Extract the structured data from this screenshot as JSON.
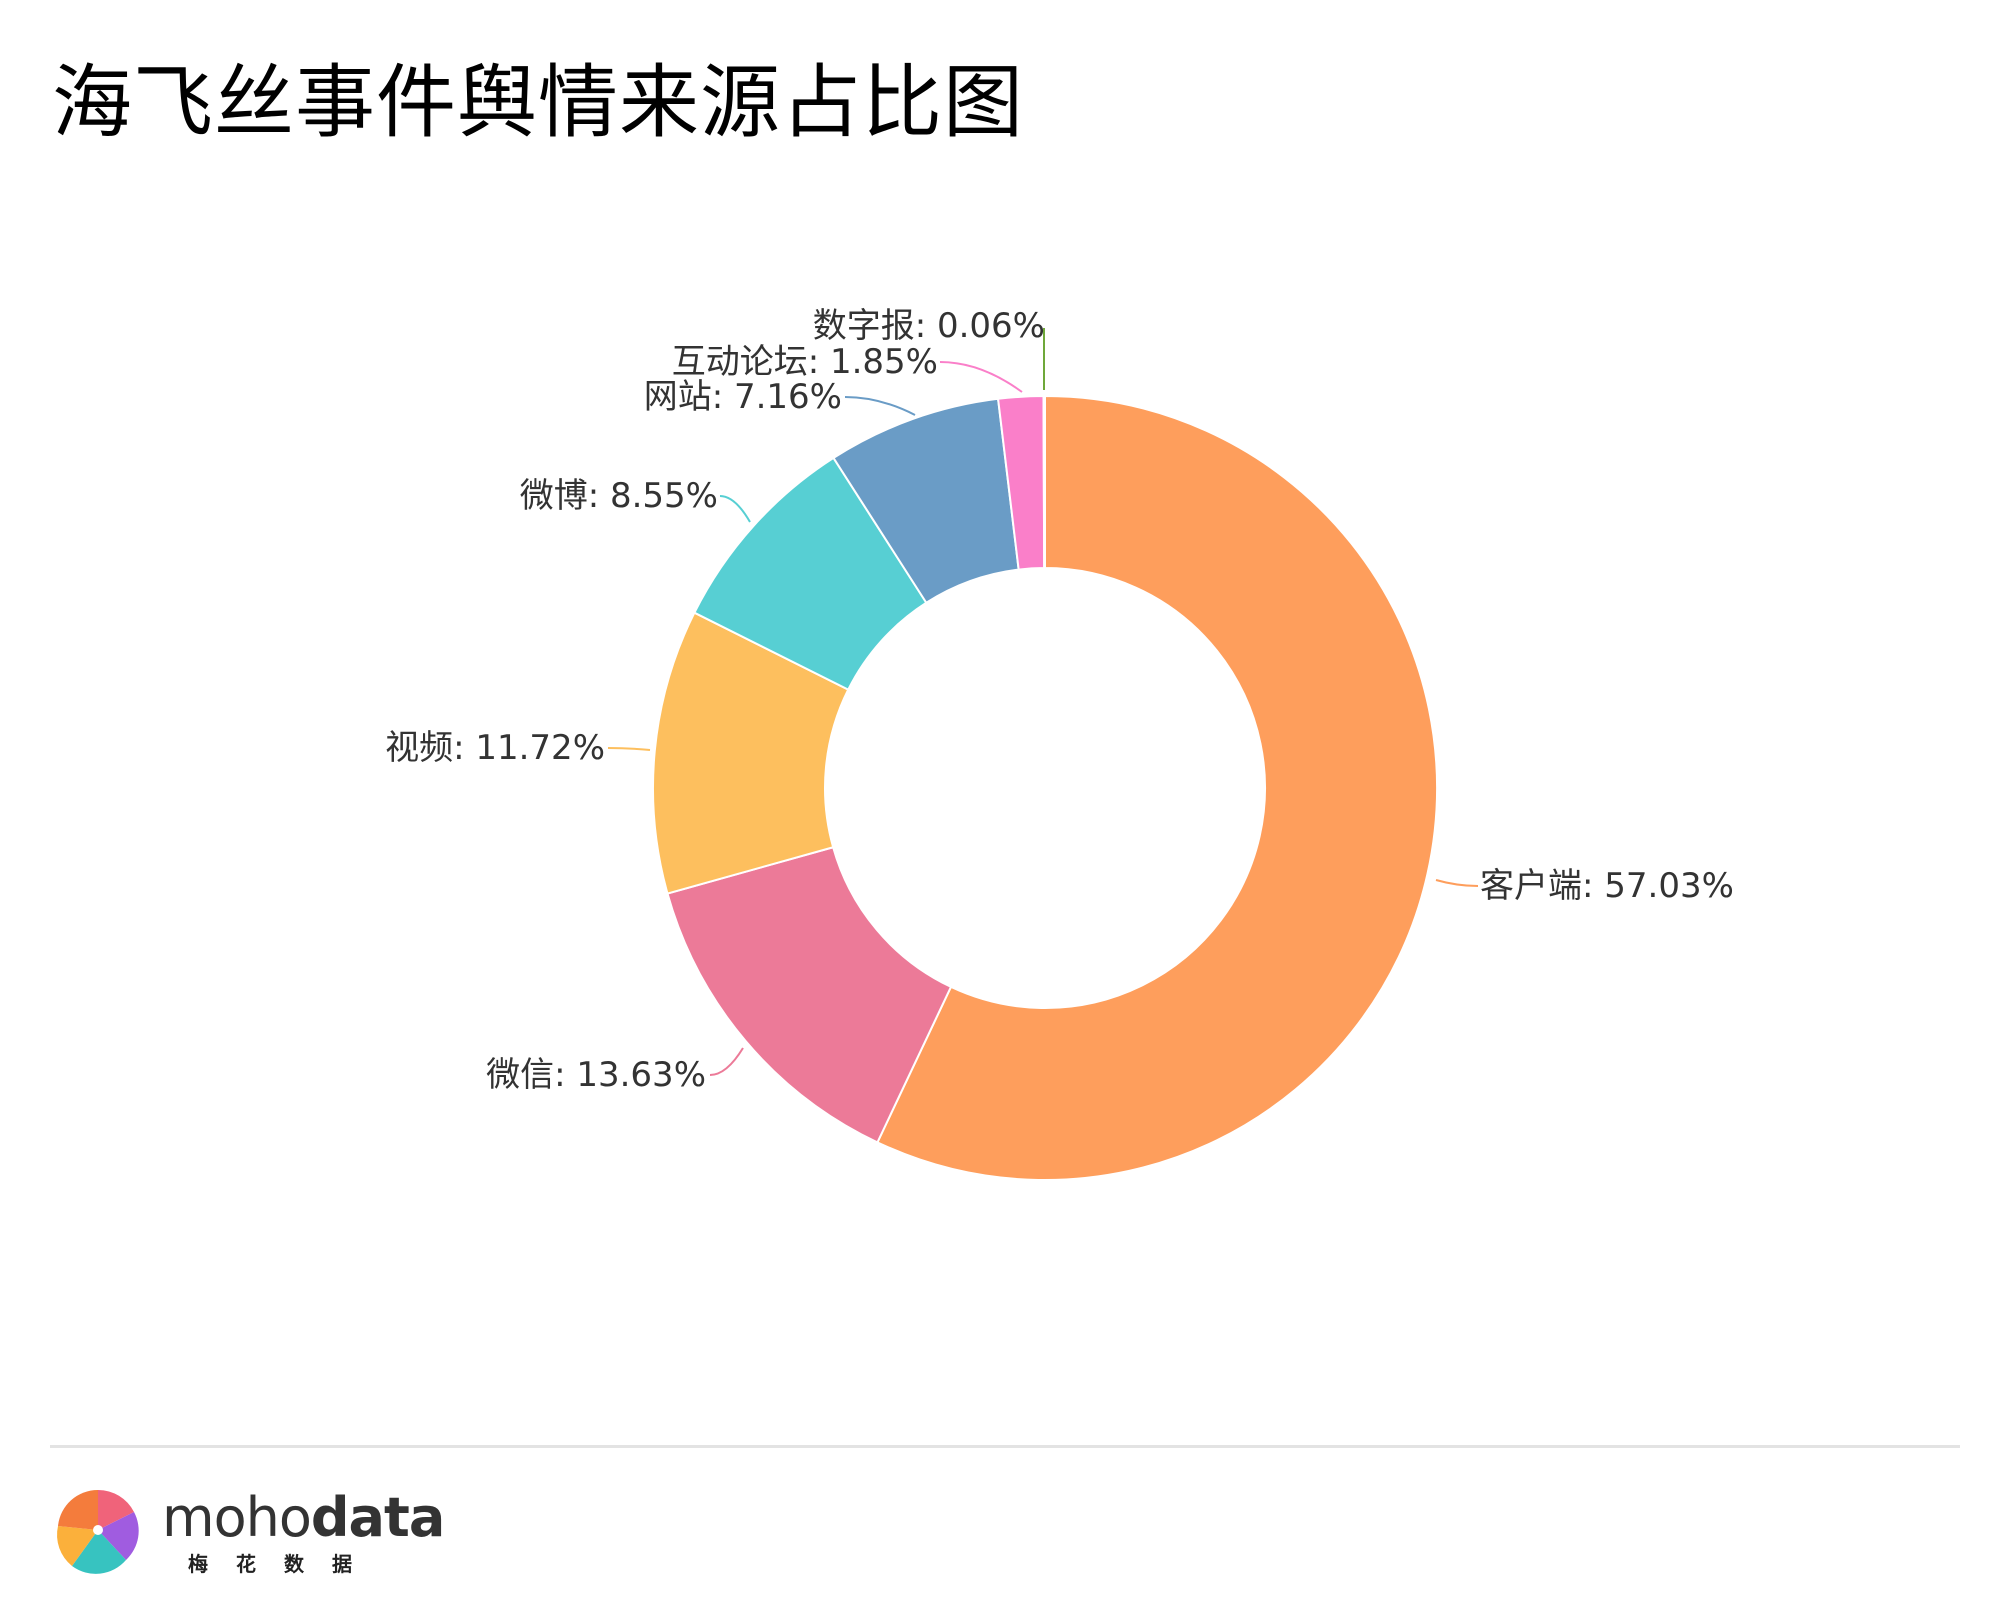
{
  "title": "海飞丝事件舆情来源占比图",
  "chart_data": {
    "type": "pie",
    "style": "donut",
    "label_separator": ": ",
    "slices": [
      {
        "label": "客户端",
        "value": 57.03,
        "display": "57.03%",
        "color": "#fe9e5c"
      },
      {
        "label": "微信",
        "value": 13.63,
        "display": "13.63%",
        "color": "#ec7a98"
      },
      {
        "label": "视频",
        "value": 11.72,
        "display": "11.72%",
        "color": "#fdbf5e"
      },
      {
        "label": "微博",
        "value": 8.55,
        "display": "8.55%",
        "color": "#57cfd3"
      },
      {
        "label": "网站",
        "value": 7.16,
        "display": "7.16%",
        "color": "#6a9cc6"
      },
      {
        "label": "互动论坛",
        "value": 1.85,
        "display": "1.85%",
        "color": "#fa7fc9"
      },
      {
        "label": "数字报",
        "value": 0.06,
        "display": "0.06%",
        "color": "#6fa83a"
      }
    ]
  },
  "brand": {
    "name_light": "moho",
    "name_bold": "data",
    "subtitle": "梅花数据"
  }
}
